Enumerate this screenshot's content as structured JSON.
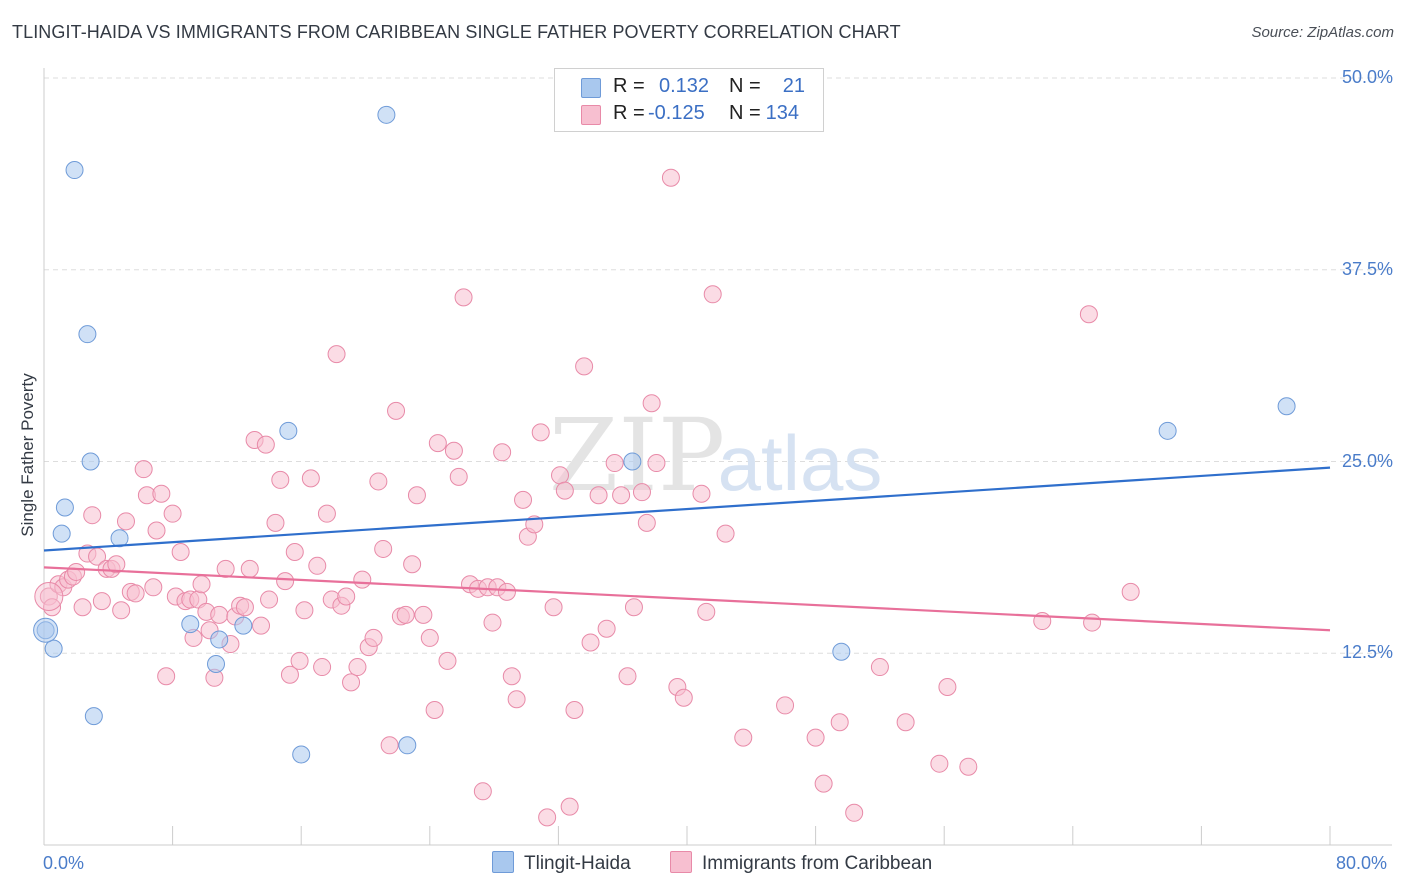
{
  "title": "TLINGIT-HAIDA VS IMMIGRANTS FROM CARIBBEAN SINGLE FATHER POVERTY CORRELATION CHART",
  "source": "Source: ZipAtlas.com",
  "watermark": {
    "zip": "ZIP",
    "atlas": "atlas"
  },
  "stats": [
    {
      "r_label": "R =",
      "r_value": "0.132",
      "n_label": "N =",
      "n_value": "21",
      "color": "#a9c8ee",
      "edge": "#6f9bd8"
    },
    {
      "r_label": "R =",
      "r_value": "-0.125",
      "n_label": "N =",
      "n_value": "134",
      "color": "#f7bfd0",
      "edge": "#e88aa8"
    }
  ],
  "legend": [
    {
      "label": "Tlingit-Haida",
      "color": "#a9c8ee",
      "edge": "#6f9bd8"
    },
    {
      "label": "Immigrants from Caribbean",
      "color": "#f7bfd0",
      "edge": "#e88aa8"
    }
  ],
  "chart_data": {
    "type": "scatter",
    "title": "TLINGIT-HAIDA VS IMMIGRANTS FROM CARIBBEAN SINGLE FATHER POVERTY CORRELATION CHART",
    "xlabel": "",
    "ylabel": "Single Father Poverty",
    "xlim": [
      0,
      80
    ],
    "ylim": [
      0,
      50
    ],
    "x_tick_labels": [
      "0.0%",
      "80.0%"
    ],
    "y_ticks": [
      12.5,
      25.0,
      37.5,
      50.0
    ],
    "y_tick_labels": [
      "12.5%",
      "25.0%",
      "37.5%",
      "50.0%"
    ],
    "grid": true,
    "legend_position": "bottom-center",
    "series": [
      {
        "name": "Tlingit-Haida",
        "color": "#a9c8ee",
        "edge": "#6f9bd8",
        "line_color": "#2f6fcc",
        "trend": {
          "x": [
            0,
            80
          ],
          "y": [
            19.2,
            24.6
          ]
        },
        "points": [
          [
            0.1,
            14.0
          ],
          [
            0.6,
            12.8
          ],
          [
            1.1,
            20.3
          ],
          [
            1.3,
            22.0
          ],
          [
            1.9,
            44.0
          ],
          [
            2.7,
            33.3
          ],
          [
            2.9,
            25.0
          ],
          [
            3.1,
            8.4
          ],
          [
            4.7,
            20.0
          ],
          [
            9.1,
            14.4
          ],
          [
            10.7,
            11.8
          ],
          [
            10.9,
            13.4
          ],
          [
            12.4,
            14.3
          ],
          [
            15.2,
            27.0
          ],
          [
            16.0,
            5.9
          ],
          [
            21.3,
            47.6
          ],
          [
            22.6,
            6.5
          ],
          [
            36.6,
            25.0
          ],
          [
            49.6,
            12.6
          ],
          [
            69.9,
            27.0
          ],
          [
            77.3,
            28.6
          ]
        ]
      },
      {
        "name": "Immigrants from Caribbean",
        "color": "#f7bfd0",
        "edge": "#e88aa8",
        "line_color": "#e8709a",
        "trend": {
          "x": [
            0,
            80
          ],
          "y": [
            18.1,
            14.0
          ]
        },
        "points": [
          [
            0.3,
            16.2
          ],
          [
            0.5,
            15.5
          ],
          [
            0.9,
            17.0
          ],
          [
            1.2,
            16.8
          ],
          [
            1.5,
            17.3
          ],
          [
            1.8,
            17.5
          ],
          [
            2.0,
            17.8
          ],
          [
            2.4,
            15.5
          ],
          [
            2.7,
            19.0
          ],
          [
            3.0,
            21.5
          ],
          [
            3.3,
            18.8
          ],
          [
            3.6,
            15.9
          ],
          [
            3.9,
            18.0
          ],
          [
            4.2,
            18.0
          ],
          [
            4.5,
            18.3
          ],
          [
            4.8,
            15.3
          ],
          [
            5.1,
            21.1
          ],
          [
            5.4,
            16.5
          ],
          [
            5.7,
            16.4
          ],
          [
            6.2,
            24.5
          ],
          [
            6.4,
            22.8
          ],
          [
            6.8,
            16.8
          ],
          [
            7.0,
            20.5
          ],
          [
            7.3,
            22.9
          ],
          [
            7.6,
            11.0
          ],
          [
            8.0,
            21.6
          ],
          [
            8.2,
            16.2
          ],
          [
            8.5,
            19.1
          ],
          [
            8.8,
            15.9
          ],
          [
            9.1,
            16.0
          ],
          [
            9.3,
            13.5
          ],
          [
            9.6,
            16.0
          ],
          [
            9.8,
            17.0
          ],
          [
            10.1,
            15.2
          ],
          [
            10.3,
            14.0
          ],
          [
            10.6,
            10.9
          ],
          [
            10.9,
            15.0
          ],
          [
            11.3,
            18.0
          ],
          [
            11.6,
            13.1
          ],
          [
            11.9,
            14.9
          ],
          [
            12.2,
            15.6
          ],
          [
            12.5,
            15.5
          ],
          [
            12.8,
            18.0
          ],
          [
            13.1,
            26.4
          ],
          [
            13.5,
            14.3
          ],
          [
            13.8,
            26.1
          ],
          [
            14.0,
            16.0
          ],
          [
            14.4,
            21.0
          ],
          [
            14.7,
            23.8
          ],
          [
            15.0,
            17.2
          ],
          [
            15.3,
            11.1
          ],
          [
            15.6,
            19.1
          ],
          [
            15.9,
            12.0
          ],
          [
            16.2,
            15.3
          ],
          [
            16.6,
            23.9
          ],
          [
            17.0,
            18.2
          ],
          [
            17.3,
            11.6
          ],
          [
            17.6,
            21.6
          ],
          [
            17.9,
            16.0
          ],
          [
            18.2,
            32.0
          ],
          [
            18.5,
            15.6
          ],
          [
            18.8,
            16.2
          ],
          [
            19.1,
            10.6
          ],
          [
            19.5,
            11.6
          ],
          [
            19.8,
            17.3
          ],
          [
            20.2,
            12.9
          ],
          [
            20.5,
            13.5
          ],
          [
            20.8,
            23.7
          ],
          [
            21.1,
            19.3
          ],
          [
            21.5,
            6.5
          ],
          [
            21.9,
            28.3
          ],
          [
            22.2,
            14.9
          ],
          [
            22.5,
            15.0
          ],
          [
            22.9,
            18.3
          ],
          [
            23.2,
            22.8
          ],
          [
            23.6,
            15.0
          ],
          [
            24.0,
            13.5
          ],
          [
            24.3,
            8.8
          ],
          [
            24.5,
            26.2
          ],
          [
            25.1,
            12.0
          ],
          [
            25.5,
            25.7
          ],
          [
            25.8,
            24.0
          ],
          [
            26.1,
            35.7
          ],
          [
            26.5,
            17.0
          ],
          [
            27.0,
            16.7
          ],
          [
            27.3,
            3.5
          ],
          [
            27.6,
            16.8
          ],
          [
            27.9,
            14.5
          ],
          [
            28.2,
            16.8
          ],
          [
            28.5,
            25.6
          ],
          [
            28.8,
            16.5
          ],
          [
            29.1,
            11.0
          ],
          [
            29.4,
            9.5
          ],
          [
            29.8,
            22.5
          ],
          [
            30.1,
            20.1
          ],
          [
            30.5,
            20.9
          ],
          [
            30.9,
            26.9
          ],
          [
            31.3,
            1.8
          ],
          [
            31.7,
            15.5
          ],
          [
            32.1,
            24.1
          ],
          [
            32.4,
            23.1
          ],
          [
            32.7,
            2.5
          ],
          [
            33.0,
            8.8
          ],
          [
            33.6,
            31.2
          ],
          [
            34.0,
            13.2
          ],
          [
            34.5,
            22.8
          ],
          [
            35.0,
            14.1
          ],
          [
            35.5,
            24.9
          ],
          [
            35.9,
            22.8
          ],
          [
            36.3,
            11.0
          ],
          [
            36.7,
            15.5
          ],
          [
            37.2,
            23.0
          ],
          [
            37.5,
            21.0
          ],
          [
            37.8,
            28.8
          ],
          [
            38.1,
            24.9
          ],
          [
            39.0,
            43.5
          ],
          [
            39.4,
            10.3
          ],
          [
            39.8,
            9.6
          ],
          [
            40.9,
            22.9
          ],
          [
            41.2,
            15.2
          ],
          [
            41.6,
            35.9
          ],
          [
            42.4,
            20.3
          ],
          [
            43.5,
            7.0
          ],
          [
            46.1,
            9.1
          ],
          [
            48.0,
            7.0
          ],
          [
            48.5,
            4.0
          ],
          [
            49.5,
            8.0
          ],
          [
            50.4,
            2.1
          ],
          [
            52.0,
            11.6
          ],
          [
            53.6,
            8.0
          ],
          [
            55.7,
            5.3
          ],
          [
            56.2,
            10.3
          ],
          [
            57.5,
            5.1
          ],
          [
            62.1,
            14.6
          ],
          [
            65.0,
            34.6
          ],
          [
            65.2,
            14.5
          ],
          [
            67.6,
            16.5
          ]
        ]
      }
    ]
  }
}
